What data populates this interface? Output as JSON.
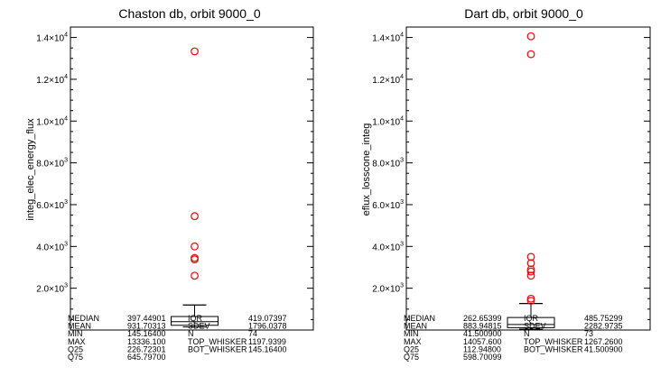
{
  "chart_data": [
    {
      "type": "box",
      "title": "Chaston db, orbit 9000_0",
      "ylabel": "integ_elec_energy_flux",
      "xlabel": "",
      "ylim": [
        0,
        14500
      ],
      "y_tick_values": [
        2000,
        4000,
        6000,
        8000,
        10000,
        12000,
        14000
      ],
      "y_tick_labels": [
        {
          "mantissa": "2.0×10",
          "exp": "3"
        },
        {
          "mantissa": "4.0×10",
          "exp": "3"
        },
        {
          "mantissa": "6.0×10",
          "exp": "3"
        },
        {
          "mantissa": "8.0×10",
          "exp": "3"
        },
        {
          "mantissa": "1.0×10",
          "exp": "4"
        },
        {
          "mantissa": "1.2×10",
          "exp": "4"
        },
        {
          "mantissa": "1.4×10",
          "exp": "4"
        }
      ],
      "box": {
        "q25": 226.72301,
        "median": 397.44901,
        "q75": 645.797,
        "bot_whisker": 145.164,
        "top_whisker": 1197.9399
      },
      "outliers": [
        13336.1,
        5450,
        4000,
        3450,
        3380,
        2600
      ],
      "stats": [
        [
          "MEDIAN",
          "397.44901",
          "IQR",
          "419.07397"
        ],
        [
          "MEAN",
          "931.70313",
          "SDEV",
          "1796.0378"
        ],
        [
          "MIN",
          "145.16400",
          "N",
          "74"
        ],
        [
          "MAX",
          "13336.100",
          "TOP_WHISKER",
          "1197.9399"
        ],
        [
          "Q25",
          "226.72301",
          "BOT_WHISKER",
          "145.16400"
        ],
        [
          "Q75",
          "645.79700",
          "",
          ""
        ]
      ]
    },
    {
      "type": "box",
      "title": "Dart db, orbit 9000_0",
      "ylabel": "eflux_losscone_integ",
      "xlabel": "",
      "ylim": [
        0,
        14500
      ],
      "y_tick_values": [
        2000,
        4000,
        6000,
        8000,
        10000,
        12000,
        14000
      ],
      "y_tick_labels": [
        {
          "mantissa": "2.0×10",
          "exp": "3"
        },
        {
          "mantissa": "4.0×10",
          "exp": "3"
        },
        {
          "mantissa": "6.0×10",
          "exp": "3"
        },
        {
          "mantissa": "8.0×10",
          "exp": "3"
        },
        {
          "mantissa": "1.0×10",
          "exp": "4"
        },
        {
          "mantissa": "1.2×10",
          "exp": "4"
        },
        {
          "mantissa": "1.4×10",
          "exp": "4"
        }
      ],
      "box": {
        "q25": 112.948,
        "median": 262.65399,
        "q75": 598.70099,
        "bot_whisker": 41.5009,
        "top_whisker": 1267.26
      },
      "outliers": [
        14057.6,
        13200,
        3500,
        3200,
        2900,
        2800,
        2600,
        1500,
        1400
      ],
      "stats": [
        [
          "MEDIAN",
          "262.65399",
          "IQR",
          "485.75299"
        ],
        [
          "MEAN",
          "883.94815",
          "SDEV",
          "2282.9735"
        ],
        [
          "MIN",
          "41.500900",
          "N",
          "73"
        ],
        [
          "MAX",
          "14057.600",
          "TOP_WHISKER",
          "1267.2600"
        ],
        [
          "Q25",
          "112.94800",
          "BOT_WHISKER",
          "41.500900"
        ],
        [
          "Q75",
          "598.70099",
          "",
          ""
        ]
      ]
    }
  ],
  "colors": {
    "axis": "#000000",
    "outlier": "#ff0000",
    "background": "#ffffff"
  }
}
